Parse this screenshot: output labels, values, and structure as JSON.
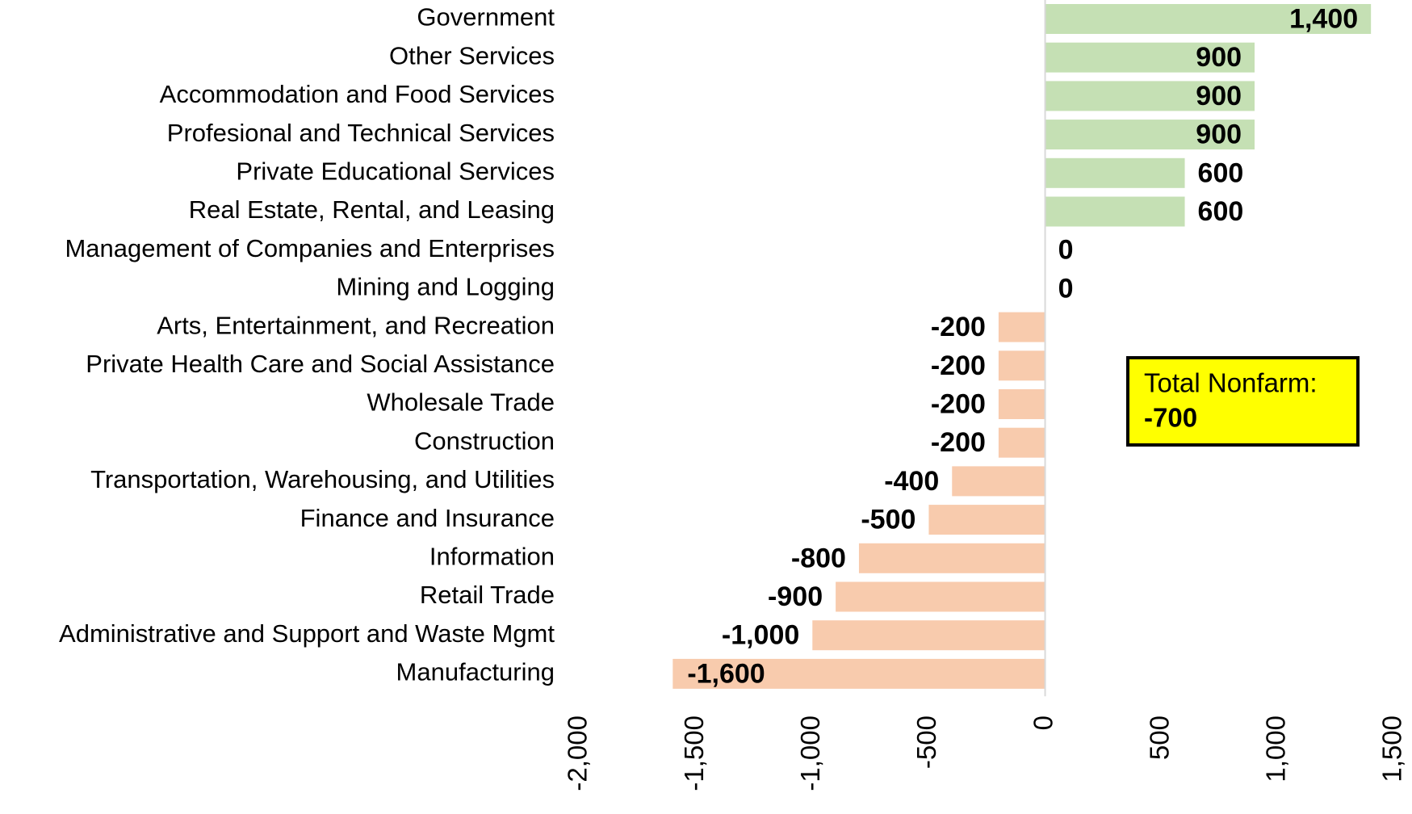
{
  "chart_data": {
    "type": "bar",
    "orientation": "horizontal",
    "categories": [
      "Government",
      "Other Services",
      "Accommodation and Food Services",
      "Profesional and Technical Services",
      "Private Educational Services",
      "Real Estate, Rental, and Leasing",
      "Management of Companies and Enterprises",
      "Mining and Logging",
      "Arts, Entertainment, and Recreation",
      "Private Health Care and Social Assistance",
      "Wholesale Trade",
      "Construction",
      "Transportation, Warehousing, and Utilities",
      "Finance and Insurance",
      "Information",
      "Retail Trade",
      "Administrative and Support and Waste Mgmt",
      "Manufacturing"
    ],
    "values": [
      1400,
      900,
      900,
      900,
      600,
      600,
      0,
      0,
      -200,
      -200,
      -200,
      -200,
      -400,
      -500,
      -800,
      -900,
      -1000,
      -1600
    ],
    "value_labels": [
      "1,400",
      "900",
      "900",
      "900",
      "600",
      "600",
      "0",
      "0",
      "-200",
      "-200",
      "-200",
      "-200",
      "-400",
      "-500",
      "-800",
      "-900",
      "-1,000",
      "-1,600"
    ],
    "positive_color": "#c5e0b4",
    "negative_color": "#f8cbad",
    "xlim": [
      -2000,
      1500
    ],
    "xticks": [
      {
        "value": -2000,
        "label": "-2,000"
      },
      {
        "value": -1500,
        "label": "-1,500"
      },
      {
        "value": -1000,
        "label": "-1,000"
      },
      -500,
      0,
      500,
      {
        "value": 1000,
        "label": "1,000"
      },
      {
        "value": 1500,
        "label": "1,500"
      }
    ],
    "grid": false,
    "annotation": [
      "Total Nonfarm:",
      "-700"
    ]
  }
}
